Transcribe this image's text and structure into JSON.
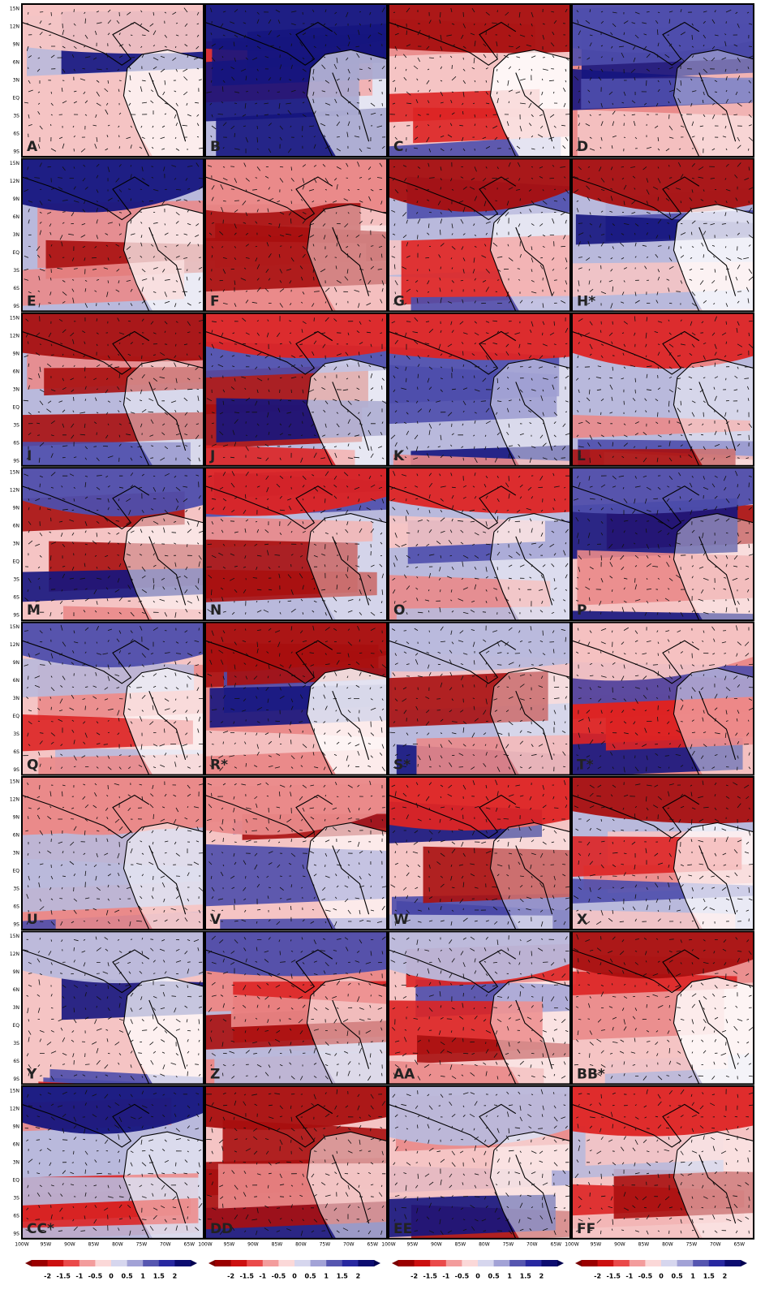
{
  "panels": [
    {
      "label": "A"
    },
    {
      "label": "B"
    },
    {
      "label": "C"
    },
    {
      "label": "D"
    },
    {
      "label": "E"
    },
    {
      "label": "F"
    },
    {
      "label": "G"
    },
    {
      "label": "H*"
    },
    {
      "label": "I"
    },
    {
      "label": "J"
    },
    {
      "label": "K"
    },
    {
      "label": "L"
    },
    {
      "label": "M"
    },
    {
      "label": "N"
    },
    {
      "label": "O"
    },
    {
      "label": "P"
    },
    {
      "label": "Q"
    },
    {
      "label": "R*"
    },
    {
      "label": "S*"
    },
    {
      "label": "T*"
    },
    {
      "label": "U"
    },
    {
      "label": "V"
    },
    {
      "label": "W"
    },
    {
      "label": "X"
    },
    {
      "label": "Y"
    },
    {
      "label": "Z"
    },
    {
      "label": "AA"
    },
    {
      "label": "BB*"
    },
    {
      "label": "CC*"
    },
    {
      "label": "DD"
    },
    {
      "label": "EE"
    },
    {
      "label": "FF"
    }
  ],
  "lat_labels": [
    "15N",
    "12N",
    "9N",
    "6N",
    "3N",
    "EQ",
    "3S",
    "6S",
    "9S"
  ],
  "lon_labels": [
    "100W",
    "95W",
    "90W",
    "85W",
    "80W",
    "75W",
    "70W",
    "65W"
  ],
  "colorbar": {
    "ticks": [
      -2,
      -1.5,
      -1,
      -0.5,
      0,
      0.5,
      1,
      1.5,
      2
    ]
  }
}
